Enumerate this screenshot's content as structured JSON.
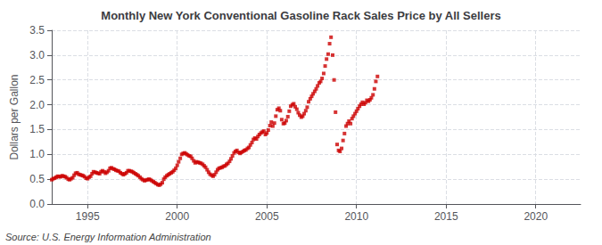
{
  "chart_data": {
    "type": "scatter",
    "title": "Monthly New York Conventional Gasoline Rack Sales Price by All Sellers",
    "ylabel": "Dollars per Gallon",
    "annotations": [
      "Source: U.S. Energy Information Administration"
    ],
    "color": "#cc0000",
    "marker": "square",
    "grid": true,
    "xlim": [
      1993.0,
      2022.5
    ],
    "xticks": [
      1995,
      2000,
      2005,
      2010,
      2015,
      2020
    ],
    "ylim": [
      0.0,
      3.5
    ],
    "yticks": [
      {
        "value": 0.0,
        "label": "0.0"
      },
      0.5,
      {
        "value": 1.0,
        "label": "1.0"
      },
      1.5,
      {
        "value": 2.0,
        "label": "2.0"
      },
      2.5,
      {
        "value": 3.0,
        "label": "3.0"
      },
      3.5
    ],
    "x": [
      1993.0,
      1993.08,
      1993.17,
      1993.25,
      1993.33,
      1993.42,
      1993.5,
      1993.58,
      1993.67,
      1993.75,
      1993.83,
      1993.92,
      1994.0,
      1994.08,
      1994.17,
      1994.25,
      1994.33,
      1994.42,
      1994.5,
      1994.58,
      1994.67,
      1994.75,
      1994.83,
      1994.92,
      1995.0,
      1995.08,
      1995.17,
      1995.25,
      1995.33,
      1995.42,
      1995.5,
      1995.58,
      1995.67,
      1995.75,
      1995.83,
      1995.92,
      1996.0,
      1996.08,
      1996.17,
      1996.25,
      1996.33,
      1996.42,
      1996.5,
      1996.58,
      1996.67,
      1996.75,
      1996.83,
      1996.92,
      1997.0,
      1997.08,
      1997.17,
      1997.25,
      1997.33,
      1997.42,
      1997.5,
      1997.58,
      1997.67,
      1997.75,
      1997.83,
      1997.92,
      1998.0,
      1998.08,
      1998.17,
      1998.25,
      1998.33,
      1998.42,
      1998.5,
      1998.58,
      1998.67,
      1998.75,
      1998.83,
      1998.92,
      1999.0,
      1999.08,
      1999.17,
      1999.25,
      1999.33,
      1999.42,
      1999.5,
      1999.58,
      1999.67,
      1999.75,
      1999.83,
      1999.92,
      2000.0,
      2000.08,
      2000.17,
      2000.25,
      2000.33,
      2000.42,
      2000.5,
      2000.58,
      2000.67,
      2000.75,
      2000.83,
      2000.92,
      2001.0,
      2001.08,
      2001.17,
      2001.25,
      2001.33,
      2001.42,
      2001.5,
      2001.58,
      2001.67,
      2001.75,
      2001.83,
      2001.92,
      2002.0,
      2002.08,
      2002.17,
      2002.25,
      2002.33,
      2002.42,
      2002.5,
      2002.58,
      2002.67,
      2002.75,
      2002.83,
      2002.92,
      2003.0,
      2003.08,
      2003.17,
      2003.25,
      2003.33,
      2003.42,
      2003.5,
      2003.58,
      2003.67,
      2003.75,
      2003.83,
      2003.92,
      2004.0,
      2004.08,
      2004.17,
      2004.25,
      2004.33,
      2004.42,
      2004.5,
      2004.58,
      2004.67,
      2004.75,
      2004.83,
      2004.92,
      2005.0,
      2005.08,
      2005.17,
      2005.25,
      2005.33,
      2005.42,
      2005.5,
      2005.58,
      2005.67,
      2005.75,
      2005.83,
      2005.92,
      2006.0,
      2006.08,
      2006.17,
      2006.25,
      2006.33,
      2006.42,
      2006.5,
      2006.58,
      2006.67,
      2006.75,
      2006.83,
      2006.92,
      2007.0,
      2007.08,
      2007.17,
      2007.25,
      2007.33,
      2007.42,
      2007.5,
      2007.58,
      2007.67,
      2007.75,
      2007.83,
      2007.92,
      2008.0,
      2008.08,
      2008.17,
      2008.25,
      2008.33,
      2008.42,
      2008.5,
      2008.58,
      2008.67,
      2008.75,
      2008.83,
      2008.92,
      2009.0,
      2009.08,
      2009.17,
      2009.25,
      2009.33,
      2009.42,
      2009.5,
      2009.58,
      2009.67,
      2009.75,
      2009.83,
      2009.92,
      2010.0,
      2010.08,
      2010.17,
      2010.25,
      2010.33,
      2010.42,
      2010.5,
      2010.58,
      2010.67,
      2010.75,
      2010.83,
      2010.92,
      2011.0,
      2011.08,
      2011.17
    ],
    "values": [
      0.49,
      0.51,
      0.52,
      0.54,
      0.56,
      0.55,
      0.55,
      0.57,
      0.56,
      0.55,
      0.53,
      0.5,
      0.49,
      0.51,
      0.53,
      0.58,
      0.62,
      0.63,
      0.6,
      0.59,
      0.58,
      0.57,
      0.55,
      0.52,
      0.51,
      0.54,
      0.56,
      0.61,
      0.65,
      0.64,
      0.63,
      0.62,
      0.61,
      0.65,
      0.67,
      0.65,
      0.62,
      0.64,
      0.67,
      0.72,
      0.73,
      0.71,
      0.7,
      0.68,
      0.67,
      0.66,
      0.63,
      0.61,
      0.59,
      0.61,
      0.63,
      0.67,
      0.67,
      0.66,
      0.65,
      0.63,
      0.61,
      0.59,
      0.57,
      0.54,
      0.51,
      0.49,
      0.47,
      0.48,
      0.49,
      0.5,
      0.49,
      0.47,
      0.45,
      0.43,
      0.41,
      0.39,
      0.38,
      0.4,
      0.43,
      0.5,
      0.54,
      0.57,
      0.59,
      0.61,
      0.63,
      0.65,
      0.68,
      0.72,
      0.78,
      0.85,
      0.92,
      1.0,
      1.02,
      1.03,
      1.01,
      0.99,
      0.97,
      0.96,
      0.92,
      0.87,
      0.83,
      0.85,
      0.84,
      0.83,
      0.82,
      0.8,
      0.77,
      0.74,
      0.69,
      0.64,
      0.6,
      0.58,
      0.56,
      0.59,
      0.64,
      0.69,
      0.72,
      0.73,
      0.74,
      0.76,
      0.77,
      0.8,
      0.82,
      0.86,
      0.91,
      0.97,
      1.03,
      1.06,
      1.08,
      1.04,
      1.02,
      1.04,
      1.06,
      1.08,
      1.09,
      1.12,
      1.14,
      1.19,
      1.24,
      1.3,
      1.33,
      1.31,
      1.36,
      1.4,
      1.43,
      1.45,
      1.47,
      1.4,
      1.43,
      1.49,
      1.58,
      1.65,
      1.57,
      1.63,
      1.77,
      1.9,
      1.93,
      1.88,
      1.7,
      1.62,
      1.63,
      1.68,
      1.76,
      1.87,
      1.97,
      2.0,
      2.02,
      1.96,
      1.91,
      1.84,
      1.79,
      1.75,
      1.77,
      1.82,
      1.88,
      1.95,
      2.06,
      2.12,
      2.17,
      2.22,
      2.27,
      2.32,
      2.38,
      2.44,
      2.47,
      2.53,
      2.63,
      2.78,
      2.92,
      3.02,
      3.23,
      3.36,
      3.0,
      2.5,
      1.85,
      1.2,
      1.08,
      1.06,
      1.12,
      1.28,
      1.42,
      1.57,
      1.62,
      1.67,
      1.62,
      1.72,
      1.77,
      1.82,
      1.87,
      1.92,
      1.97,
      2.01,
      2.05,
      2.01,
      2.04,
      2.09,
      2.07,
      2.1,
      2.14,
      2.2,
      2.32,
      2.47,
      2.57
    ]
  }
}
